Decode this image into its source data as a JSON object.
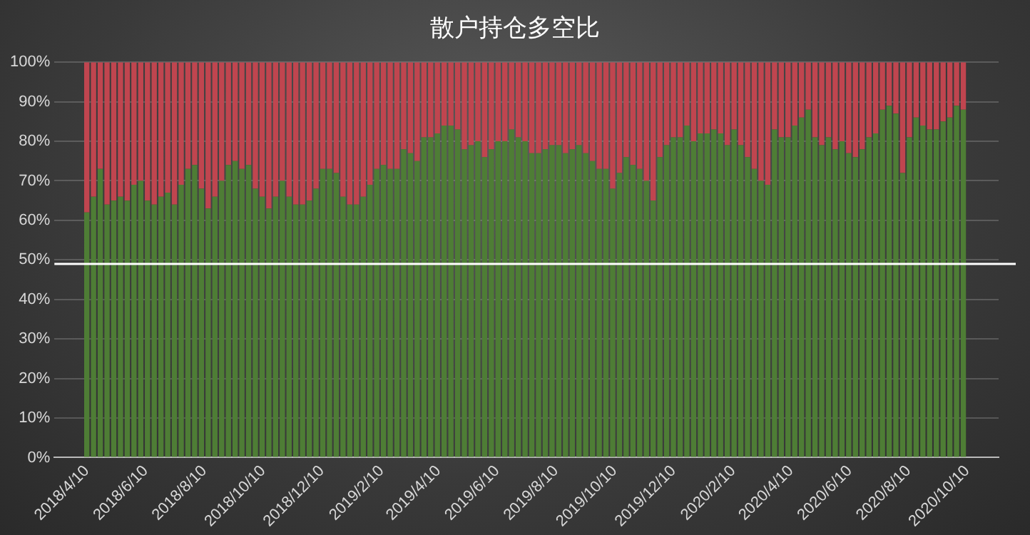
{
  "chart_data": {
    "type": "bar",
    "title": "散户持仓多空比",
    "stacked": true,
    "grid": "y",
    "legend": false,
    "x": [
      "2018-04-10",
      "2018-04-17",
      "2018-04-24",
      "2018-05-01",
      "2018-05-08",
      "2018-05-15",
      "2018-05-22",
      "2018-05-29",
      "2018-06-05",
      "2018-06-12",
      "2018-06-19",
      "2018-06-26",
      "2018-07-03",
      "2018-07-10",
      "2018-07-17",
      "2018-07-24",
      "2018-07-31",
      "2018-08-07",
      "2018-08-14",
      "2018-08-21",
      "2018-08-28",
      "2018-09-04",
      "2018-09-11",
      "2018-09-18",
      "2018-09-25",
      "2018-10-02",
      "2018-10-09",
      "2018-10-16",
      "2018-10-23",
      "2018-10-30",
      "2018-11-06",
      "2018-11-13",
      "2018-11-20",
      "2018-11-27",
      "2018-12-04",
      "2018-12-11",
      "2018-12-18",
      "2018-12-25",
      "2019-01-01",
      "2019-01-08",
      "2019-01-15",
      "2019-01-22",
      "2019-01-29",
      "2019-02-05",
      "2019-02-12",
      "2019-02-19",
      "2019-02-26",
      "2019-03-05",
      "2019-03-12",
      "2019-03-19",
      "2019-03-26",
      "2019-04-02",
      "2019-04-09",
      "2019-04-16",
      "2019-04-23",
      "2019-04-30",
      "2019-05-07",
      "2019-05-14",
      "2019-05-21",
      "2019-05-28",
      "2019-06-04",
      "2019-06-11",
      "2019-06-18",
      "2019-06-25",
      "2019-07-02",
      "2019-07-09",
      "2019-07-16",
      "2019-07-23",
      "2019-07-30",
      "2019-08-06",
      "2019-08-13",
      "2019-08-20",
      "2019-08-27",
      "2019-09-03",
      "2019-09-10",
      "2019-09-17",
      "2019-09-24",
      "2019-10-01",
      "2019-10-08",
      "2019-10-15",
      "2019-10-22",
      "2019-10-29",
      "2019-11-05",
      "2019-11-12",
      "2019-11-19",
      "2019-11-26",
      "2019-12-03",
      "2019-12-10",
      "2019-12-17",
      "2019-12-24",
      "2019-12-31",
      "2020-01-07",
      "2020-01-14",
      "2020-01-21",
      "2020-01-28",
      "2020-02-04",
      "2020-02-11",
      "2020-02-18",
      "2020-02-25",
      "2020-03-03",
      "2020-03-10",
      "2020-03-17",
      "2020-03-24",
      "2020-03-31",
      "2020-04-07",
      "2020-04-14",
      "2020-04-21",
      "2020-04-28",
      "2020-05-05",
      "2020-05-12",
      "2020-05-19",
      "2020-05-26",
      "2020-06-02",
      "2020-06-09",
      "2020-06-16",
      "2020-06-23",
      "2020-06-30",
      "2020-07-07",
      "2020-07-14",
      "2020-07-21",
      "2020-07-28",
      "2020-08-04",
      "2020-08-11",
      "2020-08-18",
      "2020-08-25",
      "2020-09-01",
      "2020-09-08",
      "2020-09-15",
      "2020-09-22",
      "2020-09-29",
      "2020-10-06"
    ],
    "series": [
      {
        "color": "#4e7d35",
        "values": [
          62,
          66,
          73,
          64,
          65,
          66,
          65,
          69,
          70,
          65,
          64,
          66,
          67,
          64,
          69,
          73,
          74,
          68,
          63,
          66,
          70,
          74,
          75,
          73,
          74,
          68,
          66,
          63,
          66,
          70,
          66,
          64,
          64,
          65,
          68,
          73,
          73,
          72,
          66,
          64,
          64,
          66,
          69,
          73,
          74,
          73,
          73,
          78,
          77,
          75,
          81,
          81,
          82,
          84,
          84,
          83,
          78,
          79,
          80,
          76,
          78,
          80,
          80,
          83,
          81,
          80,
          77,
          77,
          78,
          79,
          79,
          77,
          78,
          79,
          77,
          75,
          73,
          73,
          68,
          72,
          76,
          74,
          73,
          70,
          65,
          76,
          79,
          81,
          81,
          84,
          80,
          82,
          82,
          83,
          82,
          79,
          83,
          79,
          76,
          73,
          70,
          69,
          83,
          81,
          81,
          84,
          86,
          88,
          81,
          79,
          81,
          78,
          80,
          77,
          76,
          78,
          81,
          82,
          88,
          89,
          87,
          72,
          81,
          86,
          84,
          83,
          83,
          85,
          86,
          89,
          88
        ]
      },
      {
        "color": "#c0454f",
        "values": [
          38,
          34,
          27,
          36,
          35,
          34,
          35,
          31,
          30,
          35,
          36,
          34,
          33,
          36,
          31,
          27,
          26,
          32,
          37,
          34,
          30,
          26,
          25,
          27,
          26,
          32,
          34,
          37,
          34,
          30,
          34,
          36,
          36,
          35,
          32,
          27,
          27,
          28,
          34,
          36,
          36,
          34,
          31,
          27,
          26,
          27,
          27,
          22,
          23,
          25,
          19,
          19,
          18,
          16,
          16,
          17,
          22,
          21,
          20,
          24,
          22,
          20,
          20,
          17,
          19,
          20,
          23,
          23,
          22,
          21,
          21,
          23,
          22,
          21,
          23,
          25,
          27,
          27,
          32,
          28,
          24,
          26,
          27,
          30,
          35,
          24,
          21,
          19,
          19,
          16,
          20,
          18,
          18,
          17,
          18,
          21,
          17,
          21,
          24,
          27,
          30,
          31,
          17,
          19,
          19,
          16,
          14,
          12,
          19,
          21,
          19,
          22,
          20,
          23,
          24,
          22,
          19,
          18,
          12,
          11,
          13,
          28,
          19,
          14,
          16,
          17,
          17,
          15,
          14,
          11,
          12
        ]
      }
    ],
    "xlim": [
      "2018-04-07",
      "2020-10-12"
    ],
    "xticks": [
      {
        "value": "2018-04-10",
        "label": "2018/4/10"
      },
      {
        "value": "2018-06-10",
        "label": "2018/6/10"
      },
      {
        "value": "2018-08-10",
        "label": "2018/8/10"
      },
      {
        "value": "2018-10-10",
        "label": "2018/10/10"
      },
      {
        "value": "2018-12-10",
        "label": "2018/12/10"
      },
      {
        "value": "2019-02-10",
        "label": "2019/2/10"
      },
      {
        "value": "2019-04-10",
        "label": "2019/4/10"
      },
      {
        "value": "2019-06-10",
        "label": "2019/6/10"
      },
      {
        "value": "2019-08-10",
        "label": "2019/8/10"
      },
      {
        "value": "2019-10-10",
        "label": "2019/10/10"
      },
      {
        "value": "2019-12-10",
        "label": "2019/12/10"
      },
      {
        "value": "2020-02-10",
        "label": "2020/2/10"
      },
      {
        "value": "2020-04-10",
        "label": "2020/4/10"
      },
      {
        "value": "2020-06-10",
        "label": "2020/6/10"
      },
      {
        "value": "2020-08-10",
        "label": "2020/8/10"
      },
      {
        "value": "2020-10-10",
        "label": "2020/10/10"
      }
    ],
    "ylim": [
      0,
      100
    ],
    "yticks": [
      {
        "value": 0,
        "label": "0%"
      },
      {
        "value": 10,
        "label": "10%"
      },
      {
        "value": 20,
        "label": "20%"
      },
      {
        "value": 30,
        "label": "30%"
      },
      {
        "value": 40,
        "label": "40%"
      },
      {
        "value": 50,
        "label": "50%"
      },
      {
        "value": 60,
        "label": "60%"
      },
      {
        "value": 70,
        "label": "70%"
      },
      {
        "value": 80,
        "label": "80%"
      },
      {
        "value": 90,
        "label": "90%"
      },
      {
        "value": 100,
        "label": "100%"
      }
    ],
    "ref_lines": [
      {
        "axis": "y",
        "value": 49,
        "color": "#ffffff"
      }
    ]
  }
}
